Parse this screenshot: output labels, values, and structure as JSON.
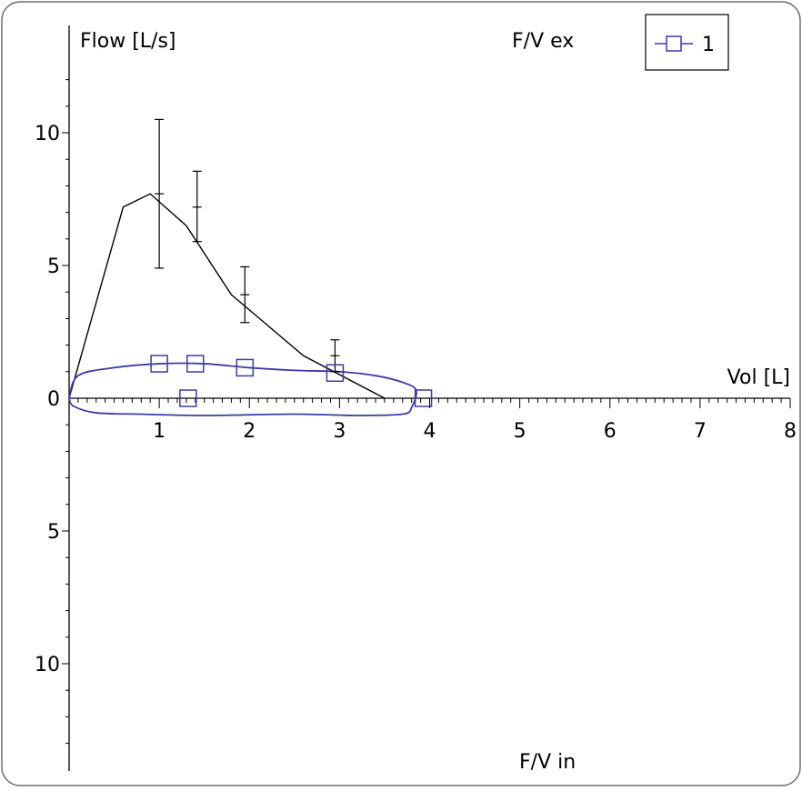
{
  "chart_data": {
    "type": "line",
    "ylabel": "Flow [L/s]",
    "xlabel": "Vol [L]",
    "top_label": "F/V ex",
    "bottom_label": "F/V in",
    "xlim": [
      0,
      8
    ],
    "ylim": [
      -14,
      14
    ],
    "x_ticks": [
      1,
      2,
      3,
      4,
      5,
      6,
      7,
      8
    ],
    "y_ticks": [
      {
        "value": 10,
        "label": "10"
      },
      {
        "value": 5,
        "label": "5"
      },
      {
        "value": 0,
        "label": "0"
      },
      {
        "value": -5,
        "label": "5"
      },
      {
        "value": -10,
        "label": "10"
      }
    ],
    "grid": false,
    "legend": {
      "position": "top-right",
      "entries": [
        {
          "label": "1",
          "color": "#3b3ba8",
          "marker": "square"
        }
      ]
    },
    "series": [
      {
        "color": "#000000",
        "kind": "predicted-expiratory-curve",
        "points": [
          [
            0,
            0
          ],
          [
            0.6,
            7.2
          ],
          [
            0.9,
            7.7
          ],
          [
            1.3,
            6.5
          ],
          [
            1.8,
            3.9
          ],
          [
            2.6,
            1.6
          ],
          [
            3.5,
            0
          ]
        ]
      },
      {
        "name": "1",
        "color": "#3b3ba8",
        "kind": "measured-loop",
        "points": [
          [
            0,
            0
          ],
          [
            0.1,
            0.85
          ],
          [
            0.5,
            1.15
          ],
          [
            1.0,
            1.3
          ],
          [
            1.5,
            1.3
          ],
          [
            2.0,
            1.15
          ],
          [
            2.5,
            1.05
          ],
          [
            3.0,
            1.0
          ],
          [
            3.4,
            0.85
          ],
          [
            3.7,
            0.6
          ],
          [
            3.85,
            0.3
          ],
          [
            3.8,
            -0.35
          ],
          [
            3.7,
            -0.6
          ],
          [
            3.2,
            -0.65
          ],
          [
            2.5,
            -0.6
          ],
          [
            1.5,
            -0.65
          ],
          [
            0.8,
            -0.6
          ],
          [
            0.3,
            -0.55
          ],
          [
            0.05,
            -0.3
          ],
          [
            0,
            0
          ]
        ],
        "markers": [
          [
            1.0,
            1.3
          ],
          [
            1.4,
            1.3
          ],
          [
            1.95,
            1.15
          ],
          [
            2.95,
            0.95
          ],
          [
            1.32,
            0
          ],
          [
            3.93,
            0
          ]
        ]
      }
    ],
    "error_bars": [
      {
        "x": 1.0,
        "low": 4.9,
        "mid": 7.7,
        "high": 10.5
      },
      {
        "x": 1.42,
        "low": 5.9,
        "mid": 7.2,
        "high": 8.55
      },
      {
        "x": 1.95,
        "low": 2.85,
        "mid": 3.9,
        "high": 4.95
      },
      {
        "x": 2.95,
        "low": 1.0,
        "mid": 1.6,
        "high": 2.2
      }
    ]
  }
}
